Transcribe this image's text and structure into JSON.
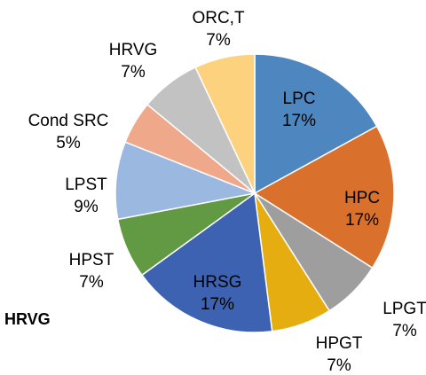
{
  "chart_data": {
    "type": "pie",
    "categories": [
      "LPC",
      "HPC",
      "LPGT",
      "HPGT",
      "HRSG",
      "HPST",
      "LPST",
      "Cond SRC",
      "HRVG",
      "ORC,T"
    ],
    "values": [
      17,
      17,
      7,
      7,
      17,
      7,
      9,
      5,
      7,
      7
    ],
    "value_labels": [
      "17%",
      "17%",
      "7%",
      "7%",
      "17%",
      "7%",
      "9%",
      "5%",
      "7%",
      "7%"
    ],
    "colors": [
      "#4E86C0",
      "#D9702B",
      "#9E9E9E",
      "#E5AD10",
      "#3D62B1",
      "#629A43",
      "#9AB8E0",
      "#EFA88A",
      "#C2C2C2",
      "#FDD27F"
    ],
    "start": "12 o'clock, clockwise",
    "legend": "none"
  },
  "caption": "HRVG"
}
